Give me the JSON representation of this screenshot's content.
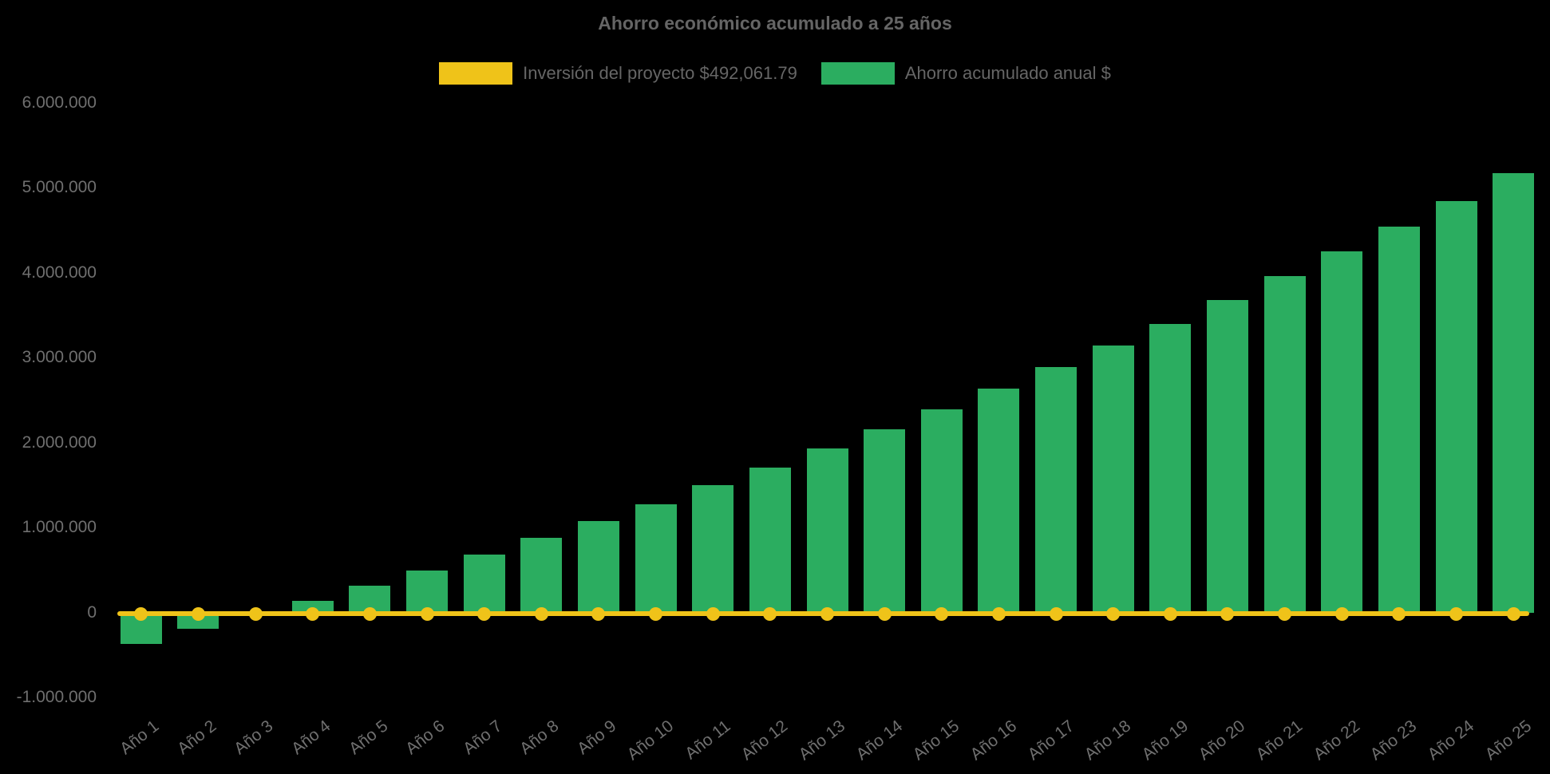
{
  "title": "Ahorro económico acumulado a 25 años",
  "legend": [
    {
      "label": "Inversión del proyecto $492,061.79",
      "color": "#EFC319",
      "kind": "line-series-swatch"
    },
    {
      "label": "Ahorro acumulado anual $",
      "color": "#2BAD60",
      "kind": "bar-series-swatch"
    }
  ],
  "colors": {
    "background": "#000000",
    "bar_green": "#2BAD60",
    "line_yellow": "#EFC319",
    "title_text": "#656565",
    "tick_text": "#6F6F6F",
    "legend_text": "#666666"
  },
  "chart_data": {
    "type": "bar",
    "title": "Ahorro económico acumulado a 25 años",
    "xlabel": "",
    "ylabel": "",
    "grid": false,
    "legend_position": "top-center",
    "ylim": [
      -1000000,
      6000000
    ],
    "categories": [
      "Año 1",
      "Año 2",
      "Año 3",
      "Año 4",
      "Año 5",
      "Año 6",
      "Año 7",
      "Año 8",
      "Año 9",
      "Año 10",
      "Año 11",
      "Año 12",
      "Año 13",
      "Año 14",
      "Año 15",
      "Año 16",
      "Año 17",
      "Año 18",
      "Año 19",
      "Año 20",
      "Año 21",
      "Año 22",
      "Año 23",
      "Año 24",
      "Año 25"
    ],
    "y_ticks": [
      {
        "label": "6.000.000",
        "value": 6000000
      },
      {
        "label": "5.000.000",
        "value": 5000000
      },
      {
        "label": "4.000.000",
        "value": 4000000
      },
      {
        "label": "3.000.000",
        "value": 3000000
      },
      {
        "label": "2.000.000",
        "value": 2000000
      },
      {
        "label": "1.000.000",
        "value": 1000000
      },
      {
        "label": "0",
        "value": 0
      },
      {
        "label": "-1.000.000",
        "value": -1000000
      }
    ],
    "series": [
      {
        "name": "Ahorro acumulado anual $",
        "type": "bar",
        "color": "#2BAD60",
        "values": [
          -365000,
          -193000,
          -25000,
          142000,
          317000,
          496000,
          684000,
          878000,
          1081000,
          1278000,
          1498000,
          1707000,
          1935000,
          2158000,
          2393000,
          2637000,
          2890000,
          3141000,
          3400000,
          3679000,
          3963000,
          4252000,
          4543000,
          4846000,
          5169000
        ]
      },
      {
        "name": "Inversión del proyecto $492,061.79",
        "type": "line",
        "color": "#EFC319",
        "marker": "circle",
        "investment_amount_text": "$492,061.79",
        "plotted_value": -15000,
        "values": [
          -15000,
          -15000,
          -15000,
          -15000,
          -15000,
          -15000,
          -15000,
          -15000,
          -15000,
          -15000,
          -15000,
          -15000,
          -15000,
          -15000,
          -15000,
          -15000,
          -15000,
          -15000,
          -15000,
          -15000,
          -15000,
          -15000,
          -15000,
          -15000,
          -15000
        ]
      }
    ]
  }
}
